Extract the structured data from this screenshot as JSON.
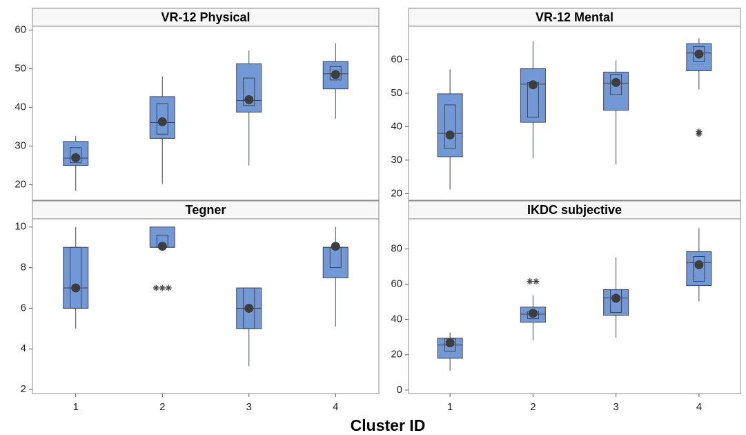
{
  "xlabel": "Cluster ID",
  "chart_data": [
    {
      "type": "box",
      "title": "VR-12 Physical",
      "color": "#7299d6",
      "ylim": [
        16,
        61
      ],
      "yticks": [
        20,
        30,
        40,
        50,
        60
      ],
      "boxes": [
        {
          "whisker_low": 18.4,
          "q1": 25,
          "ci_low": 25.7,
          "median": 26.9,
          "ci_high": 29.6,
          "q3": 31.2,
          "whisker_high": 32.6,
          "mean": 27,
          "outliers": []
        },
        {
          "whisker_low": 20.2,
          "q1": 32,
          "ci_low": 33.1,
          "median": 36.1,
          "ci_high": 41,
          "q3": 42.8,
          "whisker_high": 48,
          "mean": 36.3,
          "outliers": []
        },
        {
          "whisker_low": 25,
          "q1": 38.8,
          "ci_low": 40.5,
          "median": 41.8,
          "ci_high": 47.6,
          "q3": 51.3,
          "whisker_high": 54.7,
          "mean": 42,
          "outliers": []
        },
        {
          "whisker_low": 37.1,
          "q1": 44.8,
          "ci_low": 47.1,
          "median": 48.7,
          "ci_high": 50.6,
          "q3": 51.9,
          "whisker_high": 56.6,
          "mean": 48.5,
          "outliers": []
        }
      ]
    },
    {
      "type": "box",
      "title": "VR-12 Mental",
      "color": "#7299d6",
      "ylim": [
        18,
        70
      ],
      "yticks": [
        20,
        30,
        40,
        50,
        60
      ],
      "boxes": [
        {
          "whisker_low": 21.2,
          "q1": 31,
          "ci_low": 33.5,
          "median": 38,
          "ci_high": 46.5,
          "q3": 49.8,
          "whisker_high": 57.1,
          "mean": 37.5,
          "outliers": []
        },
        {
          "whisker_low": 30.6,
          "q1": 41.3,
          "ci_low": 42.8,
          "median": 52.7,
          "ci_high": 53.2,
          "q3": 57.3,
          "whisker_high": 65.6,
          "mean": 52.5,
          "outliers": []
        },
        {
          "whisker_low": 28.7,
          "q1": 44.9,
          "ci_low": 49.6,
          "median": 53,
          "ci_high": 55.6,
          "q3": 56.3,
          "whisker_high": 59.8,
          "mean": 53.2,
          "outliers": []
        },
        {
          "whisker_low": 51.1,
          "q1": 56.7,
          "ci_low": 59.4,
          "median": 62,
          "ci_high": 63.9,
          "q3": 64.8,
          "whisker_high": 66.4,
          "mean": 61.7,
          "outliers": [
            38.5,
            37.8
          ]
        }
      ]
    },
    {
      "type": "box",
      "title": "Tegner",
      "color": "#7299d6",
      "ylim": [
        1.8,
        10.4
      ],
      "yticks": [
        2,
        4,
        6,
        8,
        10
      ],
      "categories": [
        "1",
        "2",
        "3",
        "4"
      ],
      "boxes": [
        {
          "whisker_low": 5,
          "q1": 6,
          "ci_low": 6,
          "median": 7,
          "ci_high": 9,
          "q3": 9,
          "whisker_high": 10,
          "mean": 7,
          "outliers": []
        },
        {
          "whisker_low": 9,
          "q1": 9,
          "ci_low": 9,
          "median": 9,
          "ci_high": 9.6,
          "q3": 10,
          "whisker_high": 10,
          "mean": 9.05,
          "outliers": [
            7,
            7,
            7
          ]
        },
        {
          "whisker_low": 3.15,
          "q1": 5,
          "ci_low": 5,
          "median": 6,
          "ci_high": 7,
          "q3": 7,
          "whisker_high": 7,
          "mean": 6,
          "outliers": []
        },
        {
          "whisker_low": 5.1,
          "q1": 7.5,
          "ci_low": 8,
          "median": 9,
          "ci_high": 9,
          "q3": 9,
          "whisker_high": 10,
          "mean": 9.05,
          "outliers": []
        }
      ]
    },
    {
      "type": "box",
      "title": "IKDC subjective",
      "color": "#7299d6",
      "ylim": [
        -2,
        97
      ],
      "yticks": [
        0,
        20,
        40,
        60,
        80
      ],
      "categories": [
        "1",
        "2",
        "3",
        "4"
      ],
      "boxes": [
        {
          "whisker_low": 11,
          "q1": 18,
          "ci_low": 22,
          "median": 25.5,
          "ci_high": 29,
          "q3": 29.4,
          "whisker_high": 32.5,
          "mean": 26.7,
          "outliers": []
        },
        {
          "whisker_low": 28.2,
          "q1": 38.4,
          "ci_low": 40.4,
          "median": 43,
          "ci_high": 44.3,
          "q3": 47,
          "whisker_high": 53.7,
          "mean": 43.5,
          "outliers": [
            61.6,
            61.6
          ]
        },
        {
          "whisker_low": 29.8,
          "q1": 42.4,
          "ci_low": 44,
          "median": 52.2,
          "ci_high": 56.9,
          "q3": 56.9,
          "whisker_high": 75.3,
          "mean": 52,
          "outliers": []
        },
        {
          "whisker_low": 50.2,
          "q1": 59.2,
          "ci_low": 61.6,
          "median": 72.2,
          "ci_high": 75.7,
          "q3": 78.4,
          "whisker_high": 91.8,
          "mean": 71,
          "outliers": []
        }
      ]
    }
  ]
}
